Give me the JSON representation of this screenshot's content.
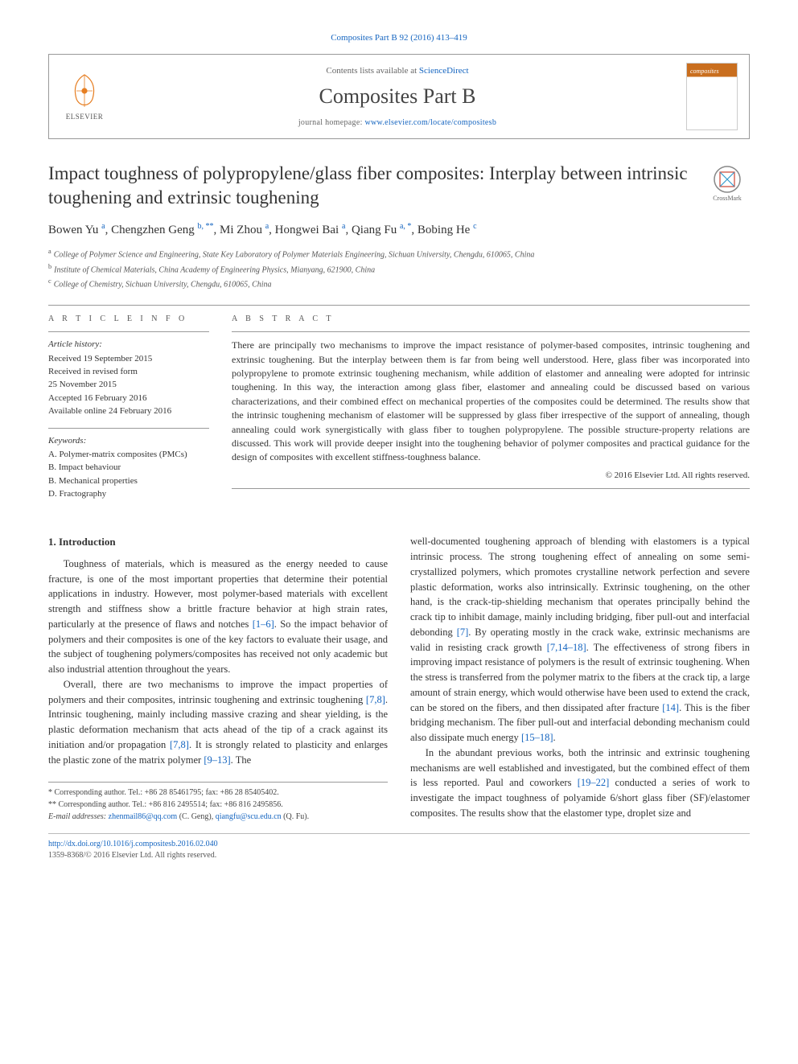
{
  "citation": "Composites Part B 92 (2016) 413–419",
  "header": {
    "contents_prefix": "Contents lists available at ",
    "contents_link": "ScienceDirect",
    "journal": "Composites Part B",
    "homepage_prefix": "journal homepage: ",
    "homepage_link": "www.elsevier.com/locate/compositesb",
    "publisher": "ELSEVIER"
  },
  "title": "Impact toughness of polypropylene/glass fiber composites: Interplay between intrinsic toughening and extrinsic toughening",
  "crossmark_label": "CrossMark",
  "authors_html": "Bowen Yu <sup>a</sup><span class='sep'>, </span>Chengzhen Geng <sup>b, **</sup><span class='sep'>, </span>Mi Zhou <sup>a</sup><span class='sep'>, </span>Hongwei Bai <sup>a</sup><span class='sep'>, </span>Qiang Fu <sup>a, *</sup><span class='sep'>, </span>Bobing He <sup>c</sup>",
  "affiliations": {
    "a": "College of Polymer Science and Engineering, State Key Laboratory of Polymer Materials Engineering, Sichuan University, Chengdu, 610065, China",
    "b": "Institute of Chemical Materials, China Academy of Engineering Physics, Mianyang, 621900, China",
    "c": "College of Chemistry, Sichuan University, Chengdu, 610065, China"
  },
  "article_info": {
    "heading": "A R T I C L E   I N F O",
    "history_label": "Article history:",
    "history": [
      "Received 19 September 2015",
      "Received in revised form",
      "25 November 2015",
      "Accepted 16 February 2016",
      "Available online 24 February 2016"
    ],
    "keywords_label": "Keywords:",
    "keywords": [
      "A. Polymer-matrix composites (PMCs)",
      "B. Impact behaviour",
      "B. Mechanical properties",
      "D. Fractography"
    ]
  },
  "abstract": {
    "heading": "A B S T R A C T",
    "text": "There are principally two mechanisms to improve the impact resistance of polymer-based composites, intrinsic toughening and extrinsic toughening. But the interplay between them is far from being well understood. Here, glass fiber was incorporated into polypropylene to promote extrinsic toughening mechanism, while addition of elastomer and annealing were adopted for intrinsic toughening. In this way, the interaction among glass fiber, elastomer and annealing could be discussed based on various characterizations, and their combined effect on mechanical properties of the composites could be determined. The results show that the intrinsic toughening mechanism of elastomer will be suppressed by glass fiber irrespective of the support of annealing, though annealing could work synergistically with glass fiber to toughen polypropylene. The possible structure-property relations are discussed. This work will provide deeper insight into the toughening behavior of polymer composites and practical guidance for the design of composites with excellent stiffness-toughness balance.",
    "copyright": "© 2016 Elsevier Ltd. All rights reserved."
  },
  "intro": {
    "heading": "1. Introduction",
    "p1_pre": "Toughness of materials, which is measured as the energy needed to cause fracture, is one of the most important properties that determine their potential applications in industry. However, most polymer-based materials with excellent strength and stiffness show a brittle fracture behavior at high strain rates, particularly at the presence of flaws and notches ",
    "r1": "[1–6]",
    "p1_post": ". So the impact behavior of polymers and their composites is one of the key factors to evaluate their usage, and the subject of toughening polymers/composites has received not only academic but also industrial attention throughout the years.",
    "p2a": "Overall, there are two mechanisms to improve the impact properties of polymers and their composites, intrinsic toughening and extrinsic toughening ",
    "r2": "[7,8]",
    "p2b": ". Intrinsic toughening, mainly including massive crazing and shear yielding, is the plastic deformation mechanism that acts ahead of the tip of a crack against its initiation and/or propagation ",
    "r3": "[7,8]",
    "p2c": ". It is strongly related to plasticity and enlarges the plastic zone of the matrix polymer ",
    "r4": "[9–13]",
    "p2d": ". The",
    "p3a": "well-documented toughening approach of blending with elastomers is a typical intrinsic process. The strong toughening effect of annealing on some semi-crystallized polymers, which promotes crystalline network perfection and severe plastic deformation, works also intrinsically. Extrinsic toughening, on the other hand, is the crack-tip-shielding mechanism that operates principally behind the crack tip to inhibit damage, mainly including bridging, fiber pull-out and interfacial debonding ",
    "r5": "[7]",
    "p3b": ". By operating mostly in the crack wake, extrinsic mechanisms are valid in resisting crack growth ",
    "r6": "[7,14–18]",
    "p3c": ". The effectiveness of strong fibers in improving impact resistance of polymers is the result of extrinsic toughening. When the stress is transferred from the polymer matrix to the fibers at the crack tip, a large amount of strain energy, which would otherwise have been used to extend the crack, can be stored on the fibers, and then dissipated after fracture ",
    "r7": "[14]",
    "p3d": ". This is the fiber bridging mechanism. The fiber pull-out and interfacial debonding mechanism could also dissipate much energy ",
    "r8": "[15–18]",
    "p3e": ".",
    "p4a": "In the abundant previous works, both the intrinsic and extrinsic toughening mechanisms are well established and investigated, but the combined effect of them is less reported. Paul and coworkers ",
    "r9": "[19–22]",
    "p4b": " conducted a series of work to investigate the impact toughness of polyamide 6/short glass fiber (SF)/elastomer composites. The results show that the elastomer type, droplet size and"
  },
  "footnotes": {
    "c1": "* Corresponding author. Tel.: +86 28 85461795; fax: +86 28 85405402.",
    "c2": "** Corresponding author. Tel.: +86 816 2495514; fax: +86 816 2495856.",
    "email_label": "E-mail addresses: ",
    "e1": "zhenmail86@qq.com",
    "e1_who": " (C. Geng), ",
    "e2": "qiangfu@scu.edu.cn",
    "e2_who": " (Q. Fu)."
  },
  "bottom": {
    "doi": "http://dx.doi.org/10.1016/j.compositesb.2016.02.040",
    "issn_line": "1359-8368/© 2016 Elsevier Ltd. All rights reserved."
  },
  "colors": {
    "link": "#1565c0",
    "text": "#333333",
    "border": "#999999",
    "orange": "#e67e22"
  }
}
